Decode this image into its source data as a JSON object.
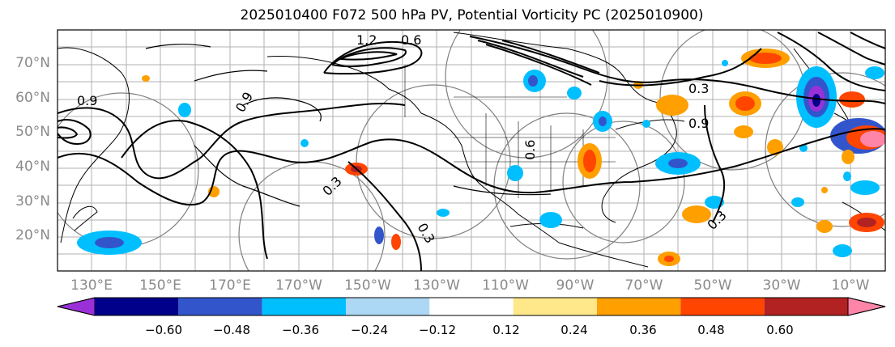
{
  "title": "2025010400 F072 500 hPa PV, Potential Vorticity PC (2025010900)",
  "lat_labels": [
    "70°N",
    "60°N",
    "50°N",
    "40°N",
    "30°N",
    "20°N"
  ],
  "lon_labels": [
    "130°E",
    "150°E",
    "170°E",
    "170°W",
    "150°W",
    "130°W",
    "110°W",
    "90°W",
    "70°W",
    "50°W",
    "30°W",
    "10°W"
  ],
  "contour_labels": [
    "0.3",
    "0.6",
    "0.9",
    "1.2",
    "0.3",
    "0.9",
    "0.6",
    "0.9",
    "0.3",
    "0.3"
  ],
  "colorbar": {
    "tick_labels": [
      "−0.60",
      "−0.48",
      "−0.36",
      "−0.24",
      "−0.12",
      "0.12",
      "0.24",
      "0.36",
      "0.48",
      "0.60"
    ],
    "colors": [
      "#9b30d9",
      "#00008b",
      "#3355cc",
      "#00bfff",
      "#add8f5",
      "#ffffff",
      "#ffe88a",
      "#ff9f00",
      "#ff4500",
      "#b22222",
      "#ff85a8"
    ]
  }
}
